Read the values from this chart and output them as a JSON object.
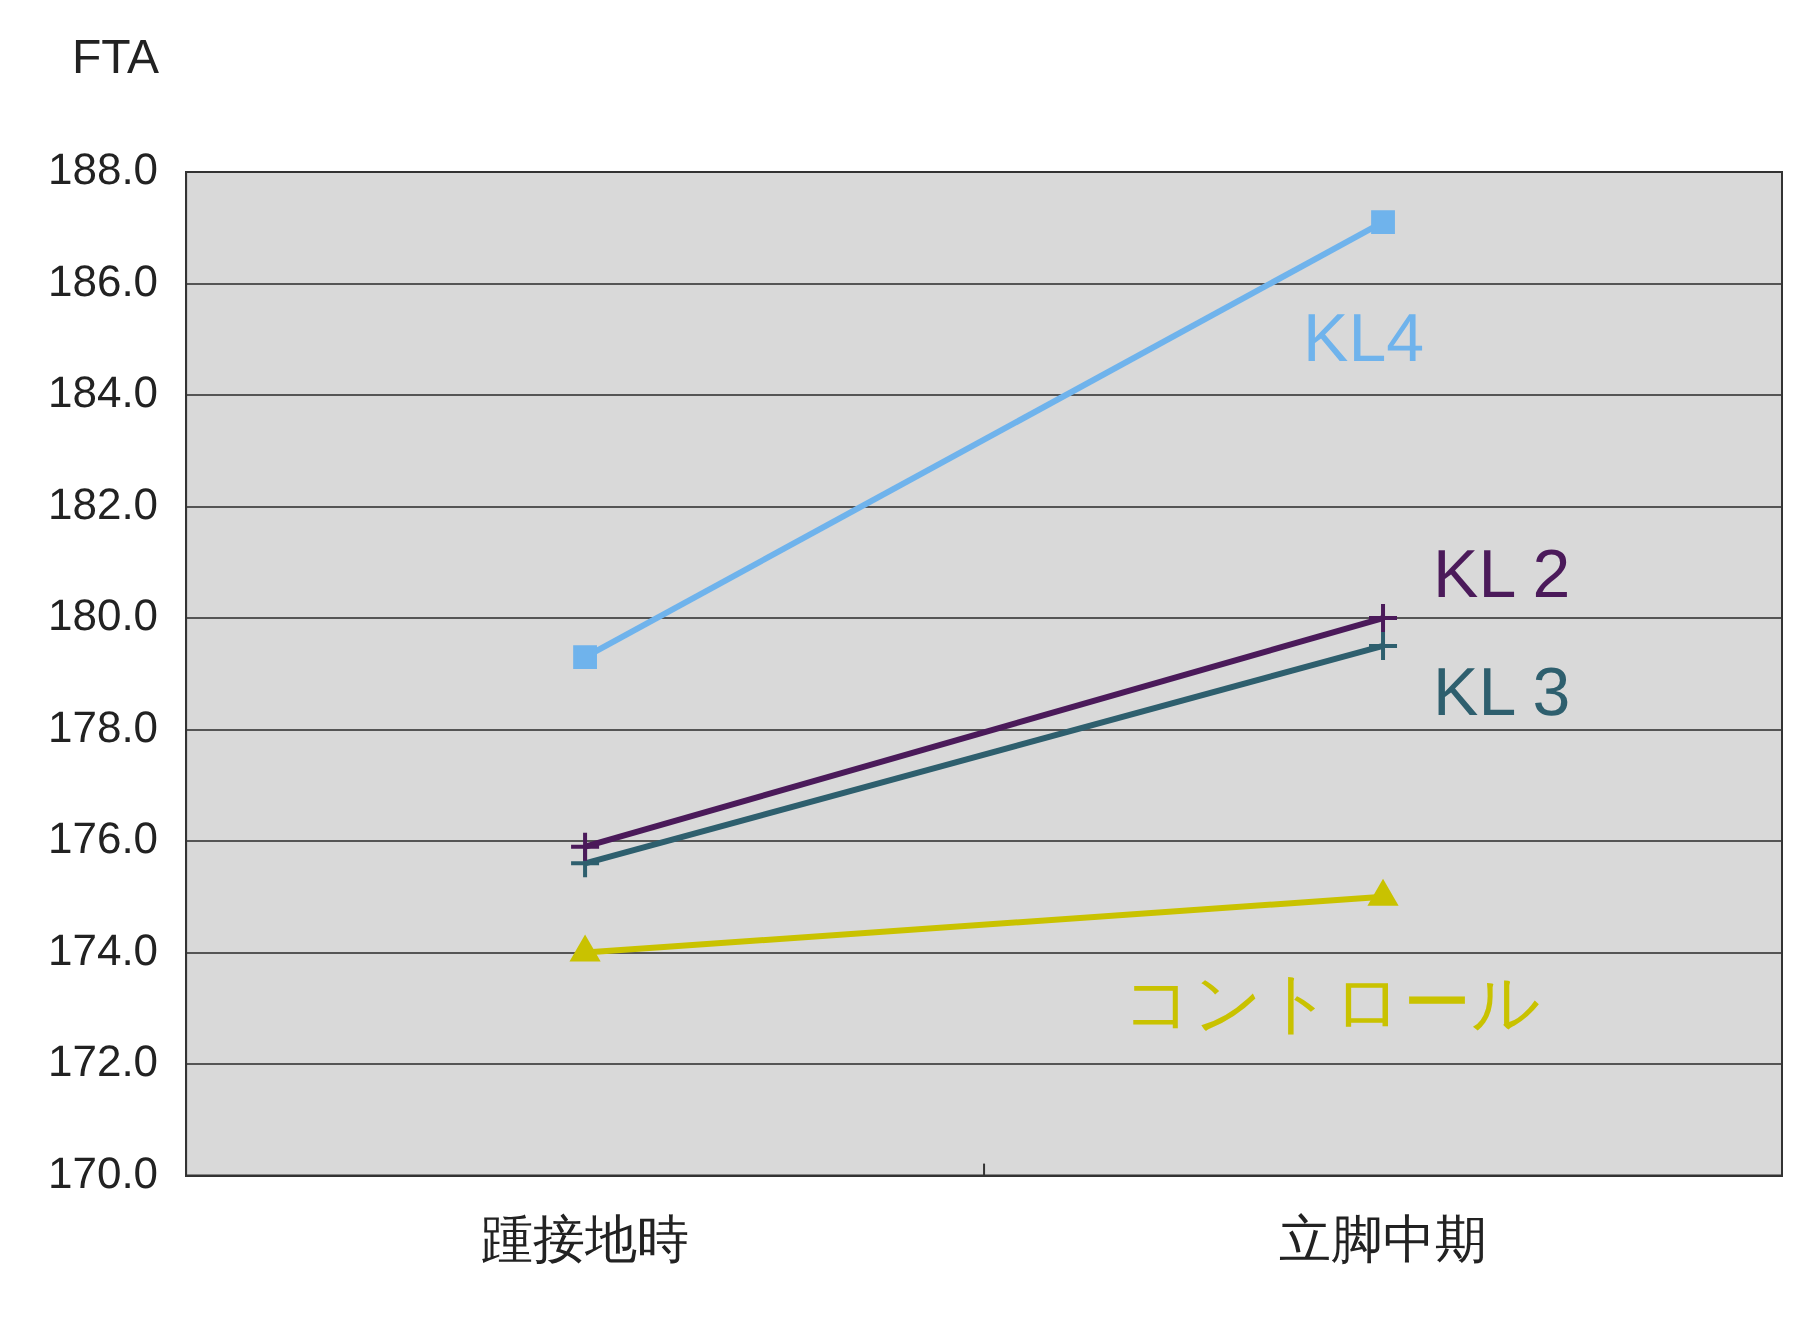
{
  "chart_data": {
    "type": "line",
    "ylabel": "FTA",
    "categories": [
      "踵接地時",
      "立脚中期"
    ],
    "series": [
      {
        "name": "KL4",
        "color": "#6fb3ec",
        "marker": "square",
        "values": [
          179.3,
          187.1
        ]
      },
      {
        "name": "KL 2",
        "color": "#4b1a5a",
        "marker": "cross",
        "values": [
          175.9,
          180.0
        ]
      },
      {
        "name": "KL 3",
        "color": "#2e5f6e",
        "marker": "cross",
        "values": [
          175.6,
          179.5
        ]
      },
      {
        "name": "コントロール",
        "color": "#c9c200",
        "marker": "triangle",
        "values": [
          174.0,
          175.0
        ]
      }
    ],
    "ylim": [
      170,
      188
    ],
    "yticks": [
      {
        "value": 170,
        "label": "170.0"
      },
      {
        "value": 172,
        "label": "172.0"
      },
      {
        "value": 174,
        "label": "174.0"
      },
      {
        "value": 176,
        "label": "176.0"
      },
      {
        "value": 178,
        "label": "178.0"
      },
      {
        "value": 180,
        "label": "180.0"
      },
      {
        "value": 182,
        "label": "182.0"
      },
      {
        "value": 184,
        "label": "184.0"
      },
      {
        "value": 186,
        "label": "186.0"
      },
      {
        "value": 188,
        "label": "188.0"
      }
    ],
    "grid": "y",
    "legend": false
  }
}
